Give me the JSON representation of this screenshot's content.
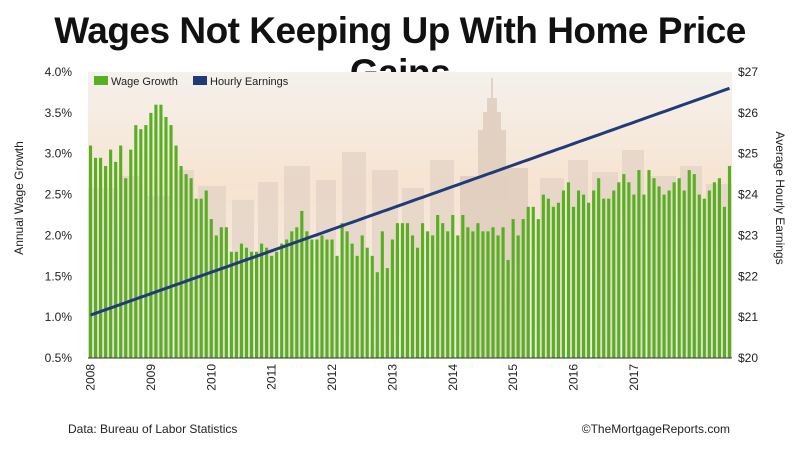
{
  "title": "Wages Not Keeping Up With Home Price Gains",
  "source": "Data: Bureau of Labor Statistics",
  "credit": "©TheMortgageReports.com",
  "colors": {
    "wage_bar": "#56b022",
    "earnings_line": "#1f3b7a",
    "sky_top": "#f3ede6",
    "sky_mid": "#f6dcc4"
  },
  "background_image": "city-skyline-photo",
  "chart_data": {
    "type": "bar",
    "xlabel": "",
    "ylabel": "Annual Wage Growth",
    "y2label": "Average Hourly Earnings",
    "ylim": [
      0.5,
      4.0
    ],
    "y2lim": [
      20,
      27
    ],
    "yticks": [
      "0.5%",
      "1.0%",
      "1.5%",
      "2.0%",
      "2.5%",
      "3.0%",
      "3.5%",
      "4.0%"
    ],
    "y2ticks": [
      "$20",
      "$21",
      "$22",
      "$23",
      "$24",
      "$25",
      "$26",
      "$27"
    ],
    "xticks": [
      "2008",
      "2009",
      "2010",
      "2011",
      "2012",
      "2013",
      "2014",
      "2015",
      "2016",
      "2017"
    ],
    "legend_position": "top-left",
    "grid": false,
    "series": [
      {
        "name": "Wage Growth",
        "type": "bar",
        "axis": "left",
        "values": [
          3.1,
          2.95,
          2.95,
          2.85,
          3.05,
          2.9,
          3.1,
          2.7,
          3.05,
          3.35,
          3.3,
          3.35,
          3.5,
          3.6,
          3.6,
          3.45,
          3.35,
          3.1,
          2.85,
          2.75,
          2.7,
          2.45,
          2.45,
          2.55,
          2.2,
          2.0,
          2.1,
          2.1,
          1.8,
          1.8,
          1.9,
          1.85,
          1.8,
          1.8,
          1.9,
          1.85,
          1.75,
          1.8,
          1.9,
          1.95,
          2.05,
          2.1,
          2.3,
          2.05,
          1.95,
          1.95,
          2.0,
          1.95,
          1.95,
          1.75,
          2.15,
          2.05,
          1.9,
          1.75,
          2.0,
          1.85,
          1.75,
          1.55,
          2.05,
          1.6,
          1.95,
          2.15,
          2.15,
          2.15,
          2.0,
          1.85,
          2.15,
          2.05,
          2.0,
          2.25,
          2.15,
          2.05,
          2.25,
          2.0,
          2.25,
          2.1,
          2.05,
          2.15,
          2.05,
          2.05,
          2.1,
          2.0,
          2.1,
          1.7,
          2.2,
          2.0,
          2.2,
          2.35,
          2.35,
          2.2,
          2.5,
          2.45,
          2.35,
          2.4,
          2.55,
          2.65,
          2.35,
          2.55,
          2.5,
          2.4,
          2.55,
          2.7,
          2.45,
          2.45,
          2.55,
          2.65,
          2.75,
          2.65,
          2.5,
          2.8,
          2.5,
          2.8,
          2.7,
          2.6,
          2.5,
          2.55,
          2.65,
          2.7,
          2.55,
          2.8,
          2.75,
          2.5,
          2.45,
          2.55,
          2.65,
          2.7,
          2.35,
          2.85
        ],
        "labeled": false
      },
      {
        "name": "Hourly Earnings",
        "type": "line",
        "axis": "right",
        "start": 21.05,
        "end": 26.6
      }
    ]
  }
}
